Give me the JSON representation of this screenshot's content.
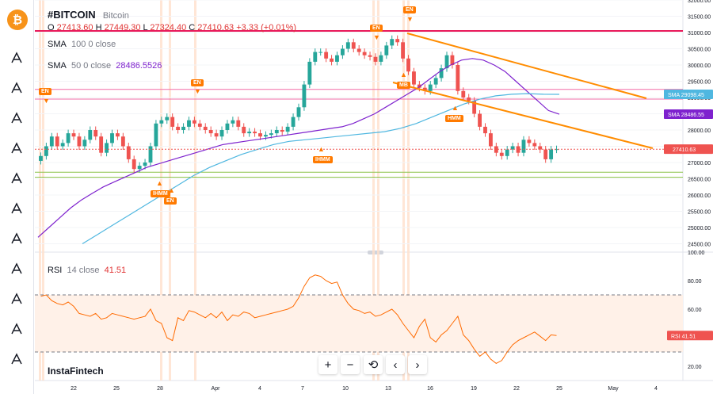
{
  "symbol": "#BITCOIN",
  "symbol_name": "Bitcoin",
  "ohlc": {
    "o_label": "O",
    "o": "27413.60",
    "h_label": "H",
    "h": "27449.30",
    "l_label": "L",
    "l": "27324.40",
    "c_label": "C",
    "c": "27410.63",
    "change": "+3.33 (+0.01%)"
  },
  "sma100_legend": {
    "name": "SMA",
    "params": "100 0 close"
  },
  "sma50_legend": {
    "name": "SMA",
    "params": "50 0 close",
    "value": "28486.5526"
  },
  "rsi_legend": {
    "name": "RSI",
    "params": "14 close",
    "value": "41.51"
  },
  "watermark": "InstaFintech",
  "toolbar_icons": [
    "bitcoin-logo-icon",
    "candles-icon",
    "pivot-icon",
    "fx-icon",
    "node-icon",
    "fib-icon",
    "brush-icon",
    "pattern-icon",
    "magnet-icon",
    "eye-off-icon",
    "calc-icon",
    "more-icon"
  ],
  "nav_buttons": [
    "+",
    "−",
    "⟲",
    "‹",
    "›"
  ],
  "colors": {
    "up": "#26a69a",
    "down": "#ef5350",
    "sma50": "#7e22ce",
    "sma100": "#4fb7e0",
    "trend": "#ff8c00",
    "resistance": "#e8195a",
    "rsi": "#ff6a00",
    "hline": "#f26ca7",
    "support": "#8bc34a"
  },
  "chart_data": {
    "type": "candlestick",
    "price_axis": {
      "min": 24000,
      "max": 32000,
      "ticks": [
        24500,
        25000,
        25500,
        26000,
        26500,
        27000,
        27500,
        28000,
        28500,
        29000,
        29500,
        30000,
        30500,
        31000,
        31500,
        32000
      ]
    },
    "date_axis": {
      "labels": [
        "22",
        "25",
        "28",
        "Apr",
        "4",
        "7",
        "10",
        "13",
        "16",
        "19",
        "22",
        "25",
        "May",
        "4"
      ]
    },
    "close_series": [
      27200,
      27500,
      27800,
      27500,
      27600,
      27900,
      27800,
      27500,
      27700,
      28000,
      27800,
      27300,
      27600,
      27900,
      27800,
      27500,
      27100,
      26800,
      26900,
      27000,
      27500,
      28200,
      28300,
      28400,
      28100,
      28000,
      28100,
      28300,
      28200,
      28100,
      28000,
      27900,
      27800,
      28000,
      28200,
      28300,
      28100,
      27900,
      27950,
      27900,
      27800,
      27850,
      27900,
      28000,
      27950,
      28100,
      28400,
      28700,
      29400,
      30100,
      30400,
      30400,
      30200,
      30100,
      30300,
      30500,
      30700,
      30500,
      30400,
      30300,
      30250,
      30100,
      30300,
      30600,
      30800,
      30700,
      30200,
      29800,
      29400,
      29300,
      29200,
      29400,
      29600,
      29900,
      30300,
      30000,
      29200,
      29000,
      28900,
      28500,
      28100,
      27900,
      27500,
      27300,
      27200,
      27400,
      27500,
      27300,
      27700,
      27600,
      27500,
      27400,
      27100,
      27400,
      27410
    ],
    "sma50_series": [
      24700,
      25000,
      25300,
      25600,
      25850,
      26050,
      26250,
      26400,
      26550,
      26700,
      26850,
      26950,
      27050,
      27150,
      27250,
      27350,
      27450,
      27550,
      27600,
      27650,
      27700,
      27750,
      27800,
      27850,
      27900,
      27950,
      28000,
      28050,
      28100,
      28200,
      28350,
      28500,
      28700,
      28900,
      29100,
      29300,
      29550,
      29800,
      30000,
      30150,
      30200,
      30150,
      30000,
      29800,
      29500,
      29200,
      28900,
      28600,
      28486
    ],
    "sma100_series": [
      24500,
      24800,
      25100,
      25400,
      25700,
      26000,
      26300,
      26600,
      26850,
      27050,
      27250,
      27400,
      27550,
      27650,
      27700,
      27750,
      27800,
      27850,
      27900,
      27950,
      28050,
      28200,
      28400,
      28600,
      28800,
      28950,
      29050,
      29100,
      29120,
      29100,
      29098
    ],
    "rsi_series": [
      69,
      70,
      66,
      64,
      63,
      65,
      62,
      57,
      56,
      55,
      57,
      53,
      54,
      57,
      56,
      55,
      54,
      53,
      54,
      55,
      60,
      52,
      50,
      40,
      38,
      54,
      52,
      59,
      58,
      56,
      54,
      57,
      54,
      58,
      52,
      56,
      55,
      58,
      57,
      54,
      55,
      56,
      57,
      58,
      59,
      60,
      62,
      68,
      76,
      82,
      84,
      83,
      80,
      78,
      79,
      70,
      64,
      60,
      59,
      57,
      58,
      55,
      56,
      58,
      60,
      56,
      50,
      45,
      40,
      48,
      53,
      40,
      37,
      42,
      45,
      50,
      55,
      42,
      38,
      32,
      27,
      30,
      25,
      22,
      24,
      30,
      35,
      38,
      40,
      42,
      44,
      41,
      38,
      42,
      41.51
    ],
    "rsi_axis": {
      "min": 10,
      "max": 100,
      "ticks": [
        20,
        40,
        60,
        80,
        100
      ],
      "band": [
        30,
        70
      ]
    },
    "price_badges": [
      {
        "label": "SMA",
        "value": "29098.45",
        "color": "#4fb7e0"
      },
      {
        "label": "SMA",
        "value": "28486.55",
        "color": "#7e22ce"
      },
      {
        "label": "",
        "value": "27410.63",
        "color": "#ef5350"
      }
    ],
    "rsi_badge": {
      "label": "RSI",
      "value": "41.51"
    },
    "annotations": [
      "EN",
      "EN",
      "EN",
      "EN",
      "EN",
      "IHMM",
      "MB",
      "HMM",
      "IHMM"
    ],
    "levels": [
      31050,
      29250,
      28950,
      26700,
      26550
    ]
  }
}
